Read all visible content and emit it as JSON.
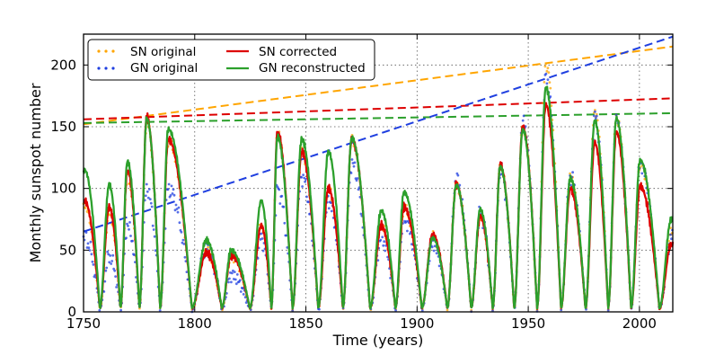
{
  "chart_data": {
    "type": "line",
    "xlabel": "Time (years)",
    "ylabel": "Monthly sunspot number",
    "xlim": [
      1750,
      2015
    ],
    "ylim": [
      0,
      225
    ],
    "xticks": [
      1750,
      1800,
      1850,
      1900,
      1950,
      2000
    ],
    "yticks": [
      0,
      50,
      100,
      150,
      200
    ],
    "grid": true,
    "legend_position": "top-left",
    "legend": [
      {
        "label": "SN original",
        "color": "#ffa500",
        "style": "dots"
      },
      {
        "label": "SN corrected",
        "color": "#dd0000",
        "style": "line"
      },
      {
        "label": "GN original",
        "color": "#1f3fe0",
        "style": "dots"
      },
      {
        "label": "GN reconstructed",
        "color": "#2ca02c",
        "style": "line"
      }
    ],
    "cycle_peaks": [
      {
        "year": 1750.5,
        "sn": 90,
        "gn": 60,
        "gnr": 115,
        "sno": 86
      },
      {
        "year": 1761.5,
        "sn": 85,
        "gn": 45,
        "gnr": 103,
        "sno": 80
      },
      {
        "year": 1769.7,
        "sn": 115,
        "gn": 70,
        "gnr": 122,
        "sno": 110
      },
      {
        "year": 1778.4,
        "sn": 158,
        "gn": 100,
        "gnr": 157,
        "sno": 154
      },
      {
        "year": 1788.1,
        "sn": 140,
        "gn": 100,
        "gnr": 148,
        "sno": 138
      },
      {
        "year": 1805.2,
        "sn": 48,
        "gn": 52,
        "gnr": 58,
        "sno": 50
      },
      {
        "year": 1816.4,
        "sn": 46,
        "gn": 30,
        "gnr": 50,
        "sno": 46
      },
      {
        "year": 1829.9,
        "sn": 70,
        "gn": 60,
        "gnr": 90,
        "sno": 70
      },
      {
        "year": 1837.2,
        "sn": 146,
        "gn": 100,
        "gnr": 142,
        "sno": 146
      },
      {
        "year": 1848.1,
        "sn": 130,
        "gn": 110,
        "gnr": 140,
        "sno": 130
      },
      {
        "year": 1860.1,
        "sn": 100,
        "gn": 90,
        "gnr": 130,
        "sno": 100
      },
      {
        "year": 1870.6,
        "sn": 140,
        "gn": 120,
        "gnr": 141,
        "sno": 140
      },
      {
        "year": 1883.9,
        "sn": 70,
        "gn": 60,
        "gnr": 82,
        "sno": 70
      },
      {
        "year": 1894.1,
        "sn": 85,
        "gn": 75,
        "gnr": 97,
        "sno": 84
      },
      {
        "year": 1907.0,
        "sn": 63,
        "gn": 55,
        "gnr": 60,
        "sno": 62
      },
      {
        "year": 1917.6,
        "sn": 103,
        "gn": 108,
        "gnr": 103,
        "sno": 104
      },
      {
        "year": 1928.4,
        "sn": 78,
        "gn": 80,
        "gnr": 83,
        "sno": 78
      },
      {
        "year": 1937.4,
        "sn": 119,
        "gn": 115,
        "gnr": 118,
        "sno": 118
      },
      {
        "year": 1947.5,
        "sn": 150,
        "gn": 155,
        "gnr": 148,
        "sno": 151
      },
      {
        "year": 1957.9,
        "sn": 168,
        "gn": 190,
        "gnr": 182,
        "sno": 201
      },
      {
        "year": 1968.9,
        "sn": 100,
        "gn": 110,
        "gnr": 108,
        "sno": 110
      },
      {
        "year": 1979.9,
        "sn": 137,
        "gn": 158,
        "gnr": 155,
        "sno": 163
      },
      {
        "year": 1989.6,
        "sn": 146,
        "gn": 155,
        "gnr": 157,
        "sno": 158
      },
      {
        "year": 2000.3,
        "sn": 102,
        "gn": 120,
        "gnr": 123,
        "sno": 120
      },
      {
        "year": 2014.3,
        "sn": 55,
        "gn": 60,
        "gnr": 75,
        "sno": 65
      }
    ],
    "trend_lines": [
      {
        "series": "SN original",
        "color": "#ffa500",
        "x": [
          1750,
          2015
        ],
        "y": [
          152,
          215
        ]
      },
      {
        "series": "SN corrected",
        "color": "#dd0000",
        "x": [
          1750,
          2015
        ],
        "y": [
          156,
          173
        ]
      },
      {
        "series": "GN reconstructed",
        "color": "#2ca02c",
        "x": [
          1750,
          2015
        ],
        "y": [
          153,
          161
        ]
      },
      {
        "series": "GN original",
        "color": "#1f3fe0",
        "x": [
          1750,
          2015
        ],
        "y": [
          65,
          223
        ]
      }
    ]
  }
}
